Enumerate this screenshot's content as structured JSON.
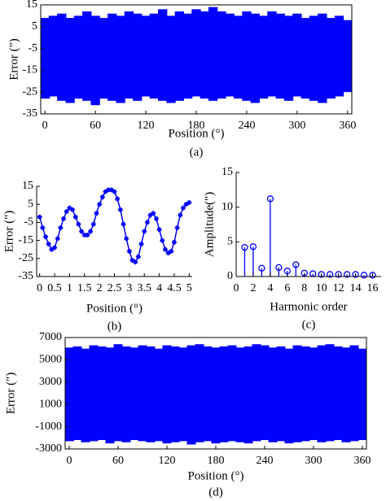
{
  "chart_data": [
    {
      "type": "band",
      "color": "#0000ff",
      "x_label": "Position (°)",
      "y_label": "Error (\")",
      "caption": "(a)",
      "x": [
        0,
        10,
        20,
        30,
        40,
        50,
        60,
        70,
        80,
        90,
        100,
        110,
        120,
        130,
        140,
        150,
        160,
        170,
        180,
        190,
        200,
        210,
        220,
        230,
        240,
        250,
        260,
        270,
        280,
        290,
        300,
        310,
        320,
        330,
        340,
        350,
        360
      ],
      "upper": [
        9,
        10,
        11,
        9,
        10,
        12,
        10,
        9,
        11,
        10,
        12,
        11,
        10,
        11,
        13,
        10,
        12,
        11,
        13,
        12,
        14,
        12,
        11,
        10,
        12,
        11,
        10,
        12,
        11,
        10,
        11,
        9,
        10,
        11,
        9,
        10,
        8
      ],
      "lower": [
        -28,
        -27,
        -29,
        -30,
        -28,
        -29,
        -31,
        -28,
        -29,
        -30,
        -28,
        -29,
        -27,
        -28,
        -29,
        -30,
        -29,
        -28,
        -27,
        -28,
        -29,
        -28,
        -27,
        -28,
        -29,
        -30,
        -28,
        -27,
        -28,
        -29,
        -27,
        -28,
        -29,
        -30,
        -28,
        -27,
        -25
      ],
      "xlim": [
        -5,
        365
      ],
      "xticks": [
        0,
        60,
        120,
        180,
        240,
        300,
        360
      ],
      "ylim": [
        -35,
        15
      ],
      "yticks": [
        15,
        5,
        -5,
        -15,
        -25,
        -35
      ]
    },
    {
      "type": "line",
      "color": "#0000ff",
      "x_label": "Position (°)",
      "y_label": "Error (\")",
      "caption": "(b)",
      "x": [
        0,
        0.1,
        0.2,
        0.3,
        0.4,
        0.5,
        0.6,
        0.7,
        0.8,
        0.9,
        1,
        1.1,
        1.2,
        1.3,
        1.4,
        1.5,
        1.6,
        1.7,
        1.8,
        1.9,
        2,
        2.1,
        2.2,
        2.3,
        2.4,
        2.5,
        2.6,
        2.7,
        2.8,
        2.9,
        3,
        3.1,
        3.2,
        3.3,
        3.4,
        3.5,
        3.6,
        3.7,
        3.8,
        3.9,
        4,
        4.1,
        4.2,
        4.3,
        4.4,
        4.5,
        4.6,
        4.7,
        4.8,
        4.9,
        5
      ],
      "values": [
        -2,
        -8,
        -13,
        -17,
        -20,
        -19,
        -14,
        -8,
        -3,
        1,
        3,
        2,
        -2,
        -6,
        -10,
        -12,
        -12,
        -10,
        -6,
        0,
        5,
        9,
        12,
        13,
        13,
        12,
        8,
        2,
        -6,
        -14,
        -21,
        -26,
        -27,
        -24,
        -17,
        -10,
        -5,
        -1,
        0,
        -3,
        -9,
        -15,
        -20,
        -22,
        -21,
        -16,
        -8,
        -1,
        3,
        5,
        6
      ],
      "xlim": [
        -0.1,
        5.1
      ],
      "xticks": [
        0,
        0.5,
        1,
        1.5,
        2,
        2.5,
        3,
        3.5,
        4,
        4.5,
        5
      ],
      "ylim": [
        -35,
        15
      ],
      "yticks": [
        15,
        5,
        -5,
        -15,
        -25,
        -35
      ]
    },
    {
      "type": "stem",
      "color": "#0000ff",
      "x_label": "Harmonic order",
      "y_label": "Amplitude(\")",
      "caption": "(c)",
      "x": [
        1,
        2,
        3,
        4,
        5,
        6,
        7,
        8,
        9,
        10,
        11,
        12,
        13,
        14,
        15,
        16
      ],
      "values": [
        4.2,
        4.3,
        1.2,
        11.2,
        1.3,
        0.8,
        1.7,
        0.5,
        0.4,
        0.3,
        0.3,
        0.3,
        0.3,
        0.3,
        0.2,
        0.2
      ],
      "xlim": [
        0,
        17
      ],
      "xticks": [
        0,
        2,
        4,
        6,
        8,
        10,
        12,
        14,
        16
      ],
      "ylim": [
        0,
        15
      ],
      "yticks": [
        0,
        5,
        10,
        15
      ]
    },
    {
      "type": "band",
      "color": "#0000ff",
      "x_label": "Position (°)",
      "y_label": "Error (\")",
      "caption": "(d)",
      "x": [
        0,
        10,
        20,
        30,
        40,
        50,
        60,
        70,
        80,
        90,
        100,
        110,
        120,
        130,
        140,
        150,
        160,
        170,
        180,
        190,
        200,
        210,
        220,
        230,
        240,
        250,
        260,
        270,
        280,
        290,
        300,
        310,
        320,
        330,
        340,
        350,
        360
      ],
      "upper": [
        6100,
        6200,
        6000,
        6300,
        6200,
        6100,
        6400,
        6200,
        6100,
        6300,
        6200,
        6000,
        6300,
        6200,
        6100,
        6300,
        6400,
        6200,
        6100,
        6200,
        6300,
        6100,
        6200,
        6400,
        6300,
        6100,
        6200,
        6000,
        6300,
        6200,
        6100,
        6300,
        6400,
        6200,
        6100,
        6300,
        6000
      ],
      "lower": [
        -2300,
        -2200,
        -2400,
        -2300,
        -2200,
        -2500,
        -2300,
        -2400,
        -2200,
        -2300,
        -2400,
        -2300,
        -2500,
        -2400,
        -2300,
        -2600,
        -2400,
        -2300,
        -2500,
        -2400,
        -2300,
        -2400,
        -2500,
        -2300,
        -2200,
        -2400,
        -2300,
        -2500,
        -2400,
        -2300,
        -2200,
        -2400,
        -2300,
        -2200,
        -2400,
        -2300,
        -2200
      ],
      "xlim": [
        -5,
        365
      ],
      "xticks": [
        0,
        60,
        120,
        180,
        240,
        300,
        360
      ],
      "ylim": [
        -3000,
        7000
      ],
      "yticks": [
        -3000,
        -1000,
        1000,
        3000,
        5000,
        7000
      ]
    }
  ]
}
